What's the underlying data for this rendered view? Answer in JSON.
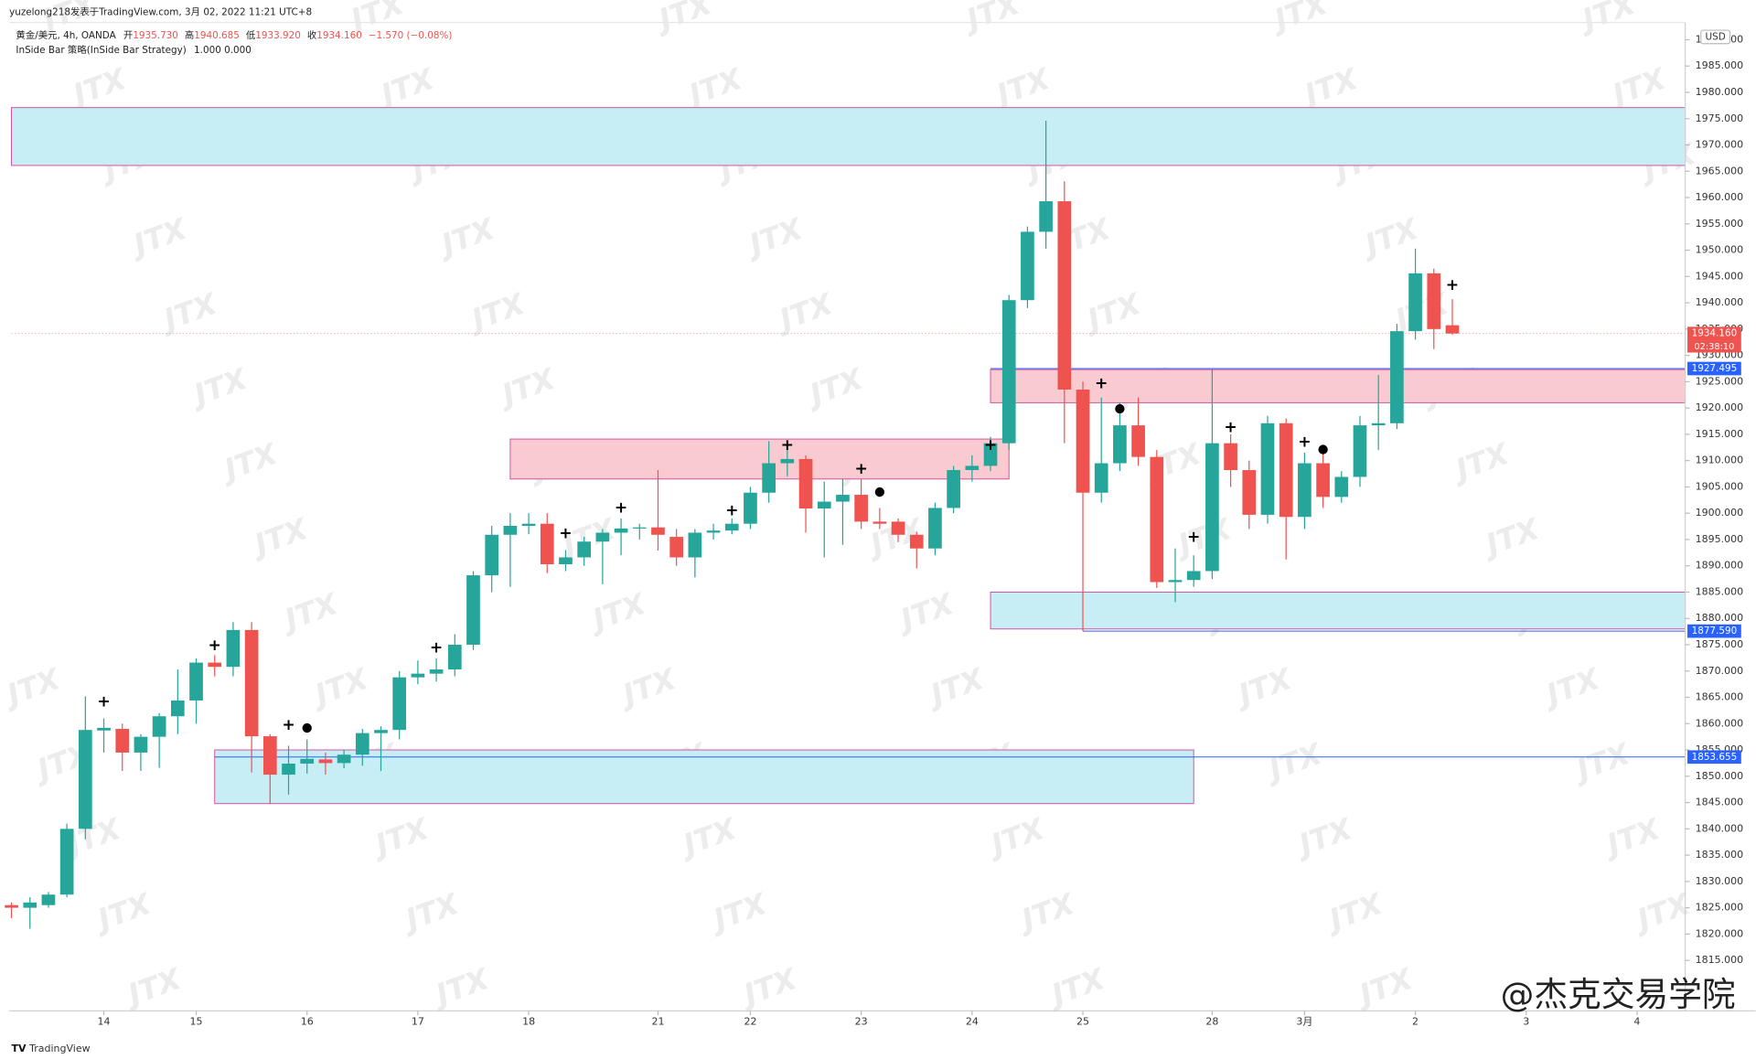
{
  "header": {
    "author_line": "yuzelong218发表于TradingView.com, 3月 02, 2022 11:21 UTC+8",
    "symbol": "黄金/美元, 4h, OANDA",
    "quote": [
      {
        "key": "开",
        "text": "1935.730"
      },
      {
        "key": "高",
        "text": "1940.685"
      },
      {
        "key": "低",
        "text": "1933.920"
      },
      {
        "key": "收",
        "text": "1934.160"
      }
    ],
    "change": "−1.570 (−0.08%)",
    "indicator": "InSide Bar 策略(InSide Bar Strategy)",
    "indicator_values": "1.000  0.000",
    "footer": "TradingView",
    "signature": "@杰克交易学院"
  },
  "chart_data": {
    "type": "candlestick",
    "currency": "USD",
    "watermark": "JTX",
    "up_color": "#26a69a",
    "down_color": "#ef5350",
    "categories": [
      null,
      null,
      null,
      null,
      null,
      "14",
      null,
      null,
      null,
      null,
      "15",
      null,
      null,
      null,
      null,
      null,
      "16",
      null,
      null,
      null,
      null,
      null,
      "17",
      null,
      null,
      null,
      null,
      null,
      "18",
      null,
      null,
      null,
      null,
      null,
      null,
      "21",
      null,
      null,
      null,
      null,
      "22",
      null,
      null,
      null,
      null,
      null,
      "23",
      null,
      null,
      null,
      null,
      null,
      "24",
      null,
      null,
      null,
      null,
      null,
      "25",
      null,
      null,
      null,
      null,
      null,
      null,
      "28",
      null,
      null,
      null,
      null,
      "3月",
      null,
      null,
      null,
      null,
      null,
      "2",
      null,
      null,
      null,
      null,
      null,
      "3",
      null,
      null,
      null,
      null,
      null,
      "4"
    ],
    "open": [
      1825.5,
      1825,
      1825.5,
      1827.5,
      1840,
      1858.7,
      1859,
      1854.5,
      1857.5,
      1861.4,
      1864.4,
      1871.6,
      1870.8,
      1877.8,
      1857.6,
      1850.3,
      1852.4,
      1853.2,
      1852.5,
      1854.1,
      1858.2,
      1858.8,
      1868.8,
      1869.5,
      1870.3,
      1875,
      1888.2,
      1895.9,
      1897.6,
      1898,
      1890.3,
      1891.6,
      1894.6,
      1896.3,
      1897.1,
      1897.3,
      1895.5,
      1891.6,
      1896.3,
      1896.7,
      1898,
      1903.9,
      1909.5,
      1910.3,
      1900.9,
      1902.2,
      1903.5,
      1898.4,
      1898.4,
      1895.9,
      1893.3,
      1901,
      1908.2,
      1909,
      1913.3,
      1940.5,
      1953.5,
      1959.3,
      1923.5,
      1903.9,
      1909.5,
      1916.7,
      1910.7,
      1886.9,
      1887.3,
      1889,
      1913.3,
      1908.2,
      1899.7,
      1917.1,
      1899.3,
      1909.5,
      1903.1,
      1906.9,
      1916.7,
      1917.1,
      1934.6,
      1945.6,
      1935.73,
      null,
      null,
      null,
      null,
      null,
      null,
      null,
      null,
      null,
      null
    ],
    "high": [
      1826,
      1827,
      1828,
      1841,
      1865.2,
      1861,
      1860,
      1858,
      1862,
      1870.3,
      1872.4,
      1873,
      1879.3,
      1879.3,
      1858,
      1855.8,
      1857,
      1854.5,
      1855,
      1859,
      1859.5,
      1870,
      1872,
      1872.4,
      1877,
      1889,
      1897.6,
      1900,
      1900,
      1900,
      1893,
      1895.5,
      1897,
      1899,
      1898,
      1908.2,
      1897,
      1897,
      1898,
      1899,
      1905,
      1913.7,
      1913.5,
      1911,
      1906,
      1906.5,
      1906.5,
      1901,
      1899,
      1896.5,
      1902,
      1909,
      1911,
      1914.5,
      1941.5,
      1954.5,
      1974.6,
      1963.1,
      1925,
      1922,
      1921,
      1922,
      1912,
      1893.3,
      1892,
      1927.3,
      1915,
      1910,
      1918.5,
      1918,
      1911.5,
      1912,
      1908,
      1918.5,
      1926.3,
      1936,
      1950.3,
      1946.5,
      1940.685,
      null,
      null,
      null,
      null,
      null,
      null,
      null,
      null,
      null,
      null
    ],
    "low": [
      1823,
      1821,
      1825,
      1827,
      1838,
      1854.5,
      1851,
      1851,
      1851.6,
      1858,
      1860,
      1869,
      1869,
      1850.7,
      1844.8,
      1846.5,
      1850.5,
      1850.3,
      1851.5,
      1852,
      1851,
      1857,
      1867.5,
      1868,
      1869,
      1874,
      1885,
      1886,
      1896,
      1888.6,
      1889,
      1890,
      1886.5,
      1892,
      1895,
      1892.9,
      1890,
      1887.8,
      1895,
      1896,
      1897,
      1902,
      1907,
      1896.3,
      1891.6,
      1894,
      1897,
      1897,
      1894.5,
      1889.5,
      1892,
      1900,
      1906,
      1908,
      1912,
      1939,
      1950.3,
      1913.3,
      1877.59,
      1902,
      1908,
      1909,
      1885.8,
      1883.1,
      1886,
      1887.5,
      1905,
      1897,
      1898,
      1891.2,
      1897,
      1901,
      1902,
      1905,
      1912,
      1916,
      1933,
      1931.2,
      1933.92,
      null,
      null,
      null,
      null,
      null,
      null,
      null,
      null,
      null,
      null
    ],
    "close": [
      1825,
      1826,
      1827.5,
      1840,
      1858.8,
      1859.2,
      1854.5,
      1857.5,
      1861.4,
      1864.4,
      1871.6,
      1870.8,
      1877.8,
      1857.6,
      1850.3,
      1852.4,
      1853.3,
      1852.5,
      1854.1,
      1858.2,
      1858.8,
      1868.8,
      1869.5,
      1870.3,
      1875,
      1888.2,
      1895.9,
      1897.6,
      1898,
      1890.3,
      1891.6,
      1894.6,
      1896.3,
      1897.1,
      1897.3,
      1895.9,
      1891.6,
      1896.3,
      1896.7,
      1898,
      1903.9,
      1909.5,
      1910.3,
      1900.9,
      1902.2,
      1903.5,
      1898.4,
      1898,
      1895.9,
      1893.3,
      1901,
      1908.2,
      1909,
      1913.3,
      1940.5,
      1953.5,
      1959.3,
      1923.5,
      1903.9,
      1909.5,
      1916.7,
      1910.7,
      1886.9,
      1887.3,
      1889,
      1913.3,
      1908.2,
      1899.7,
      1917.1,
      1899.3,
      1909.5,
      1903.1,
      1906.9,
      1916.7,
      1917.1,
      1934.6,
      1945.6,
      1935,
      1934.16,
      null,
      null,
      null,
      null,
      null,
      null,
      null,
      null,
      null,
      null
    ],
    "ylim": [
      1805.4,
      1993.3
    ],
    "yticks": [
      {
        "value": 1815,
        "label": "1815.000"
      },
      {
        "value": 1820,
        "label": "1820.000"
      },
      {
        "value": 1825,
        "label": "1825.000"
      },
      {
        "value": 1830,
        "label": "1830.000"
      },
      {
        "value": 1835,
        "label": "1835.000"
      },
      {
        "value": 1840,
        "label": "1840.000"
      },
      {
        "value": 1845,
        "label": "1845.000"
      },
      {
        "value": 1850,
        "label": "1850.000"
      },
      {
        "value": 1855,
        "label": "1855.000"
      },
      {
        "value": 1860,
        "label": "1860.000"
      },
      {
        "value": 1865,
        "label": "1865.000"
      },
      {
        "value": 1870,
        "label": "1870.000"
      },
      {
        "value": 1875,
        "label": "1875.000"
      },
      {
        "value": 1880,
        "label": "1880.000"
      },
      {
        "value": 1885,
        "label": "1885.000"
      },
      {
        "value": 1890,
        "label": "1890.000"
      },
      {
        "value": 1895,
        "label": "1895.000"
      },
      {
        "value": 1900,
        "label": "1900.000"
      },
      {
        "value": 1905,
        "label": "1905.000"
      },
      {
        "value": 1910,
        "label": "1910.000"
      },
      {
        "value": 1915,
        "label": "1915.000"
      },
      {
        "value": 1920,
        "label": "1920.000"
      },
      {
        "value": 1925,
        "label": "1925.000"
      },
      {
        "value": 1930,
        "label": "1930.000"
      },
      {
        "value": 1935,
        "label": "1935.000"
      },
      {
        "value": 1940,
        "label": "1940.000"
      },
      {
        "value": 1945,
        "label": "1945.000"
      },
      {
        "value": 1950,
        "label": "1950.000"
      },
      {
        "value": 1955,
        "label": "1955.000"
      },
      {
        "value": 1960,
        "label": "1960.000"
      },
      {
        "value": 1965,
        "label": "1965.000"
      },
      {
        "value": 1970,
        "label": "1970.000"
      },
      {
        "value": 1975,
        "label": "1975.000"
      },
      {
        "value": 1980,
        "label": "1980.000"
      },
      {
        "value": 1985,
        "label": "1985.000"
      },
      {
        "value": 1990,
        "label": "1990.000"
      }
    ],
    "zones": [
      {
        "low": 1966.1,
        "high": 1977.1,
        "start": 0,
        "extend_right": true,
        "color": "#c8eef5",
        "border": "#d64fa0"
      },
      {
        "low": 1906.5,
        "high": 1914.1,
        "start": 27,
        "end": 54,
        "color": "#f9cbd0",
        "border": "#d64fa0"
      },
      {
        "low": 1921.0,
        "high": 1927.3,
        "start": 53,
        "extend_right": true,
        "color": "#f9cbd0",
        "border": "#d64fa0"
      },
      {
        "low": 1878.0,
        "high": 1885.0,
        "start": 53,
        "extend_right": true,
        "color": "#c8eef5",
        "border": "#d64fa0"
      },
      {
        "low": 1844.8,
        "high": 1855.0,
        "start": 11,
        "end": 64,
        "color": "#c8eef5",
        "border": "#d64fa0"
      }
    ],
    "price_lines": [
      {
        "value": 1934.16,
        "label": "1934.160",
        "color": "#ef5350",
        "start": 0,
        "dashed": true,
        "countdown": "02:38:10"
      },
      {
        "value": 1927.495,
        "label": "1927.495",
        "color": "#2962ff",
        "start": 53
      },
      {
        "value": 1877.59,
        "label": "1877.590",
        "color": "#2962ff",
        "start": 58
      },
      {
        "value": 1853.655,
        "label": "1853.655",
        "color": "#2962ff",
        "start": 11
      }
    ],
    "markers": [
      {
        "index": 5,
        "symbol": "+",
        "price": 1864.1
      },
      {
        "index": 11,
        "symbol": "+",
        "price": 1874.8
      },
      {
        "index": 15,
        "symbol": "+",
        "price": 1859.7
      },
      {
        "index": 16,
        "symbol": "●",
        "price": 1859.3
      },
      {
        "index": 23,
        "symbol": "+",
        "price": 1874.4
      },
      {
        "index": 30,
        "symbol": "+",
        "price": 1896.1
      },
      {
        "index": 33,
        "symbol": "+",
        "price": 1901
      },
      {
        "index": 39,
        "symbol": "+",
        "price": 1900.5
      },
      {
        "index": 42,
        "symbol": "+",
        "price": 1912.9
      },
      {
        "index": 46,
        "symbol": "+",
        "price": 1908.4
      },
      {
        "index": 47,
        "symbol": "●",
        "price": 1904.1
      },
      {
        "index": 53,
        "symbol": "+",
        "price": 1912.9
      },
      {
        "index": 59,
        "symbol": "+",
        "price": 1924.6
      },
      {
        "index": 60,
        "symbol": "●",
        "price": 1919.9
      },
      {
        "index": 64,
        "symbol": "+",
        "price": 1895.4
      },
      {
        "index": 66,
        "symbol": "+",
        "price": 1916.3
      },
      {
        "index": 70,
        "symbol": "+",
        "price": 1913.5
      },
      {
        "index": 71,
        "symbol": "●",
        "price": 1912.2
      },
      {
        "index": 78,
        "symbol": "+",
        "price": 1943.3
      }
    ]
  }
}
